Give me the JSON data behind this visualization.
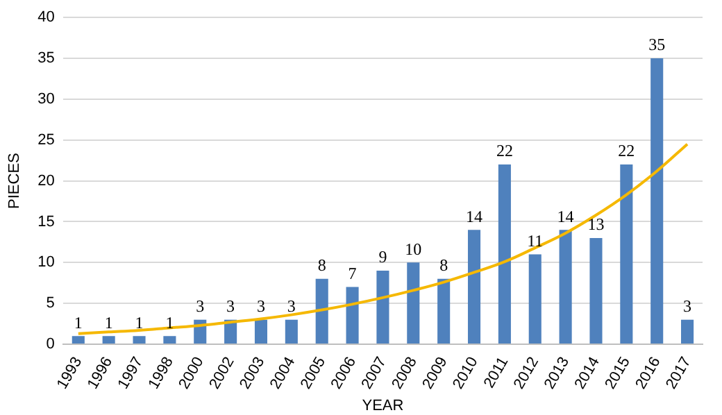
{
  "chart_data": {
    "type": "bar",
    "xlabel": "YEAR",
    "ylabel": "PIECES",
    "categories": [
      "1993",
      "1996",
      "1997",
      "1998",
      "2000",
      "2002",
      "2003",
      "2004",
      "2005",
      "2006",
      "2007",
      "2008",
      "2009",
      "2010",
      "2011",
      "2012",
      "2013",
      "2014",
      "2015",
      "2016",
      "2017"
    ],
    "series": [
      {
        "color": "#4f81bd",
        "values": [
          1,
          1,
          1,
          1,
          3,
          3,
          3,
          3,
          8,
          7,
          9,
          10,
          8,
          14,
          22,
          11,
          14,
          13,
          22,
          35,
          3
        ],
        "value_labels": [
          "1",
          "1",
          "1",
          "1",
          "3",
          "3",
          "3",
          "3",
          "8",
          "7",
          "9",
          "10",
          "8",
          "14",
          "22",
          "11",
          "14",
          "13",
          "22",
          "35",
          "3"
        ]
      },
      {
        "type": "line",
        "color": "#f5b800",
        "marker": "none",
        "values": [
          1.3,
          1.5,
          1.7,
          2.0,
          2.3,
          2.7,
          3.1,
          3.6,
          4.2,
          4.9,
          5.7,
          6.6,
          7.6,
          8.8,
          10.1,
          11.8,
          13.6,
          15.8,
          18.3,
          21.2,
          24.5
        ]
      }
    ],
    "ylim": [
      0,
      40
    ],
    "yticks": [
      0,
      5,
      10,
      15,
      20,
      25,
      30,
      35,
      40
    ],
    "grid": "y",
    "legend": false
  }
}
